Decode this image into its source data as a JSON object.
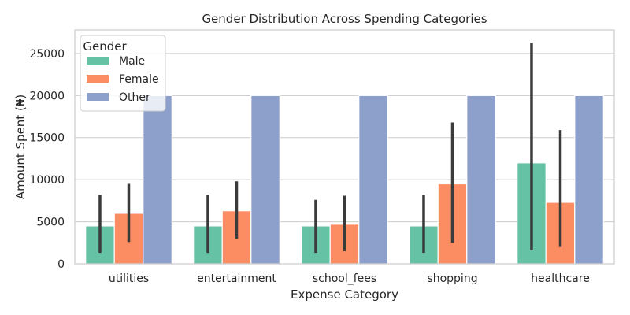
{
  "chart_data": {
    "type": "bar",
    "title": "Gender Distribution Across Spending Categories",
    "xlabel": "Expense Category",
    "ylabel": "Amount Spent (₦)",
    "categories": [
      "utilities",
      "entertainment",
      "school_fees",
      "shopping",
      "healthcare"
    ],
    "ylim": [
      0,
      27800
    ],
    "yticks": [
      0,
      5000,
      10000,
      15000,
      20000,
      25000
    ],
    "grid": true,
    "legend": {
      "title": "Gender",
      "placement": "top-left"
    },
    "series": [
      {
        "name": "Male",
        "color": "#66c2a5",
        "values": [
          4500,
          4500,
          4500,
          4500,
          12000
        ],
        "error_low": [
          1300,
          1300,
          1300,
          1300,
          1600
        ],
        "error_high": [
          8200,
          8200,
          7600,
          8200,
          26300
        ]
      },
      {
        "name": "Female",
        "color": "#fc8d62",
        "values": [
          6000,
          6300,
          4700,
          9500,
          7300
        ],
        "error_low": [
          2600,
          3000,
          1500,
          2500,
          2000
        ],
        "error_high": [
          9500,
          9800,
          8100,
          16800,
          15900
        ]
      },
      {
        "name": "Other",
        "color": "#8da0cb",
        "values": [
          20000,
          20000,
          20000,
          20000,
          20000
        ],
        "error_low": [
          20000,
          20000,
          20000,
          20000,
          20000
        ],
        "error_high": [
          20000,
          20000,
          20000,
          20000,
          20000
        ]
      }
    ]
  }
}
